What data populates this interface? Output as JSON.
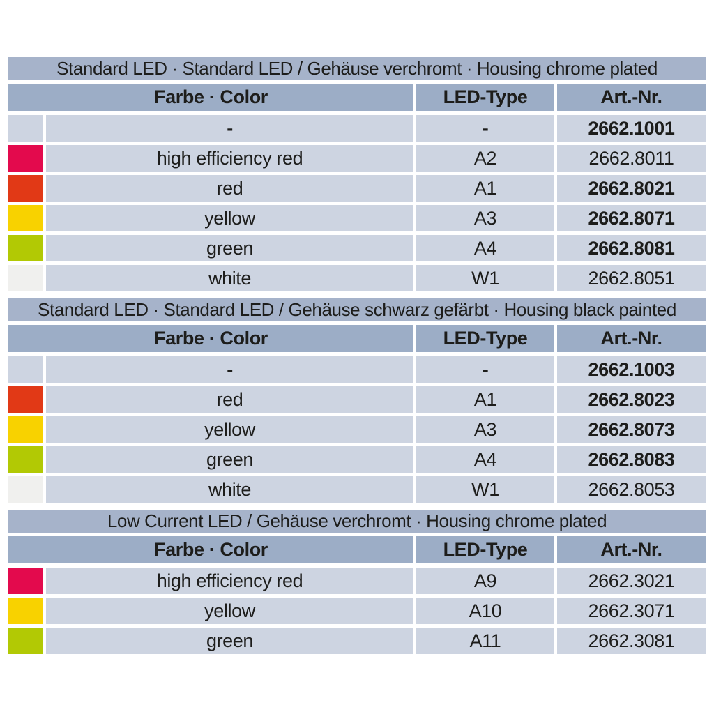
{
  "colors": {
    "page_bg": "#ffffff",
    "title_band": "#a6b3ca",
    "header_band": "#9cadc6",
    "row_bg": "#cdd4e1",
    "text": "#1d1d1b",
    "swatches": {
      "high_efficiency_red": "#e30a4d",
      "red": "#e13916",
      "yellow": "#f8d200",
      "green": "#b2c904",
      "white": "#f0f0ee"
    }
  },
  "tables": [
    {
      "title": "Standard LED · Standard LED / Gehäuse verchromt · Housing chrome plated",
      "columns": {
        "color": "Farbe · Color",
        "led_type": "LED-Type",
        "art_nr": "Art.-Nr."
      },
      "rows": [
        {
          "swatch": null,
          "color": "-",
          "led_type": "-",
          "art_nr": "2662.1001",
          "bold_color": true,
          "bold_led": true,
          "bold_art": true
        },
        {
          "swatch": "high_efficiency_red",
          "color": "high efficiency red",
          "led_type": "A2",
          "art_nr": "2662.8011",
          "bold_color": false,
          "bold_led": false,
          "bold_art": false
        },
        {
          "swatch": "red",
          "color": "red",
          "led_type": "A1",
          "art_nr": "2662.8021",
          "bold_color": false,
          "bold_led": false,
          "bold_art": true
        },
        {
          "swatch": "yellow",
          "color": "yellow",
          "led_type": "A3",
          "art_nr": "2662.8071",
          "bold_color": false,
          "bold_led": false,
          "bold_art": true
        },
        {
          "swatch": "green",
          "color": "green",
          "led_type": "A4",
          "art_nr": "2662.8081",
          "bold_color": false,
          "bold_led": false,
          "bold_art": true
        },
        {
          "swatch": "white",
          "color": "white",
          "led_type": "W1",
          "art_nr": "2662.8051",
          "bold_color": false,
          "bold_led": false,
          "bold_art": false
        }
      ]
    },
    {
      "title": "Standard LED · Standard LED / Gehäuse schwarz gefärbt · Housing black painted",
      "columns": {
        "color": "Farbe · Color",
        "led_type": "LED-Type",
        "art_nr": "Art.-Nr."
      },
      "rows": [
        {
          "swatch": null,
          "color": "-",
          "led_type": "-",
          "art_nr": "2662.1003",
          "bold_color": true,
          "bold_led": true,
          "bold_art": true
        },
        {
          "swatch": "red",
          "color": "red",
          "led_type": "A1",
          "art_nr": "2662.8023",
          "bold_color": false,
          "bold_led": false,
          "bold_art": true
        },
        {
          "swatch": "yellow",
          "color": "yellow",
          "led_type": "A3",
          "art_nr": "2662.8073",
          "bold_color": false,
          "bold_led": false,
          "bold_art": true
        },
        {
          "swatch": "green",
          "color": "green",
          "led_type": "A4",
          "art_nr": "2662.8083",
          "bold_color": false,
          "bold_led": false,
          "bold_art": true
        },
        {
          "swatch": "white",
          "color": "white",
          "led_type": "W1",
          "art_nr": "2662.8053",
          "bold_color": false,
          "bold_led": false,
          "bold_art": false
        }
      ]
    },
    {
      "title": "Low Current LED / Gehäuse verchromt · Housing chrome plated",
      "columns": {
        "color": "Farbe · Color",
        "led_type": "LED-Type",
        "art_nr": "Art.-Nr."
      },
      "rows": [
        {
          "swatch": "high_efficiency_red",
          "color": "high efficiency red",
          "led_type": "A9",
          "art_nr": "2662.3021",
          "bold_color": false,
          "bold_led": false,
          "bold_art": false
        },
        {
          "swatch": "yellow",
          "color": "yellow",
          "led_type": "A10",
          "art_nr": "2662.3071",
          "bold_color": false,
          "bold_led": false,
          "bold_art": false
        },
        {
          "swatch": "green",
          "color": "green",
          "led_type": "A11",
          "art_nr": "2662.3081",
          "bold_color": false,
          "bold_led": false,
          "bold_art": false
        }
      ]
    }
  ]
}
